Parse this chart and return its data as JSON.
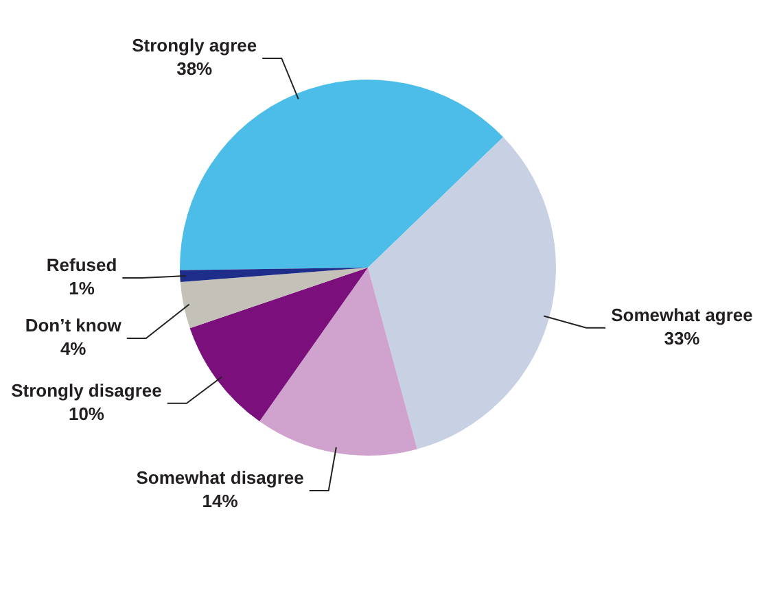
{
  "chart_data": {
    "type": "pie",
    "categories": [
      "Strongly agree",
      "Somewhat agree",
      "Somewhat disagree",
      "Strongly disagree",
      "Don’t know",
      "Refused"
    ],
    "values": [
      38,
      33,
      14,
      10,
      4,
      1
    ],
    "value_labels": [
      "38%",
      "33%",
      "14%",
      "10%",
      "4%",
      "1%"
    ],
    "colors": [
      "#4bbde8",
      "#c8d0e4",
      "#d0a2ce",
      "#7b0f7c",
      "#c4c2b8",
      "#1f2d8a"
    ],
    "legend": false
  }
}
